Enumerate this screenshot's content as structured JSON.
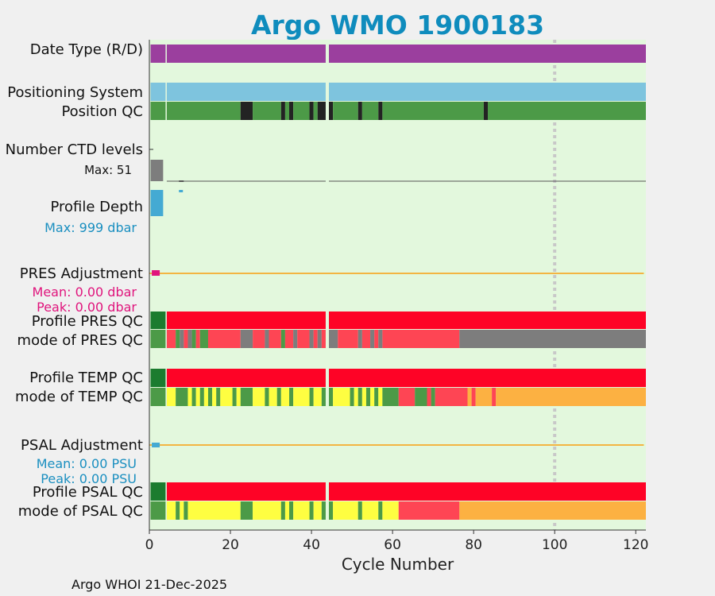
{
  "title": "Argo WMO 1900183",
  "footer": "Argo WHOI 21-Dec-2025",
  "colors": {
    "title": "#0f8cbd",
    "background": "#e3f8dd",
    "purple": "#9b3f9e",
    "light_blue": "#7ec4de",
    "green": "#4c9a47",
    "dark_green": "#1b7c2f",
    "black": "#232323",
    "gray": "#7d7d7d",
    "profile_blue": "#44aad3",
    "magenta": "#e0147c",
    "orange_line": "#f3b542",
    "red": "#fe0326",
    "light_red": "#fe4554",
    "yellow": "#fefe41",
    "orange": "#fcb142",
    "text_cyan": "#1a8fc0"
  },
  "labels": {
    "date_type": "Date Type (R/D)",
    "positioning_system": "Positioning System",
    "position_qc": "Position QC",
    "n_ctd_levels": "Number CTD levels",
    "ctd_max": "Max: 51",
    "profile_depth": "Profile Depth",
    "depth_max": "Max:  999 dbar",
    "pres_adjustment": "PRES Adjustment",
    "pres_mean": "Mean: 0.00 dbar",
    "pres_peak": "Peak: 0.00 dbar",
    "profile_pres_qc": "Profile PRES QC",
    "mode_pres_qc": "mode of PRES QC",
    "profile_temp_qc": "Profile TEMP QC",
    "mode_temp_qc": "mode of TEMP QC",
    "psal_adjustment": "PSAL Adjustment",
    "psal_mean": "Mean: 0.00 PSU",
    "psal_peak": "Peak: 0.00 PSU",
    "profile_psal_qc": "Profile PSAL QC",
    "mode_psal_qc": "mode of PSAL QC"
  },
  "chart_data": {
    "type": "timeline",
    "title": "Argo WMO 1900183",
    "xlabel": "Cycle Number",
    "xlim": [
      0,
      122.5
    ],
    "xticks": [
      0,
      20,
      40,
      60,
      80,
      100,
      120
    ],
    "reference_line_cycle": 100,
    "cycle_gaps": [
      [
        4,
        4.3
      ],
      [
        43.5,
        44.3
      ]
    ],
    "ctd_levels_max": 51,
    "profile_depth_max_dbar": 999,
    "pres_adjustment": {
      "mean": 0.0,
      "peak": 0.0,
      "unit": "dbar"
    },
    "psal_adjustment": {
      "mean": 0.0,
      "peak": 0.0,
      "unit": "PSU"
    },
    "rows": [
      {
        "name": "date-type",
        "segments": [
          [
            0.3,
            4,
            "purple"
          ],
          [
            4.3,
            43.5,
            "purple"
          ],
          [
            44.3,
            122.5,
            "purple"
          ]
        ]
      },
      {
        "name": "positioning-system",
        "segments": [
          [
            0.3,
            4,
            "light_blue"
          ],
          [
            4.3,
            43.5,
            "light_blue"
          ],
          [
            44.3,
            122.5,
            "light_blue"
          ]
        ]
      },
      {
        "name": "position-qc",
        "segments": [
          [
            0.3,
            4,
            "green"
          ],
          [
            4.3,
            22.5,
            "green"
          ],
          [
            22.5,
            25.5,
            "black"
          ],
          [
            25.5,
            32.5,
            "green"
          ],
          [
            32.5,
            33.5,
            "black"
          ],
          [
            33.5,
            34.5,
            "green"
          ],
          [
            34.5,
            35.5,
            "black"
          ],
          [
            35.5,
            39.5,
            "green"
          ],
          [
            39.5,
            40.5,
            "black"
          ],
          [
            40.5,
            41.5,
            "green"
          ],
          [
            41.5,
            43.5,
            "black"
          ],
          [
            44.3,
            45.3,
            "black"
          ],
          [
            45.3,
            51.5,
            "green"
          ],
          [
            51.5,
            52.5,
            "black"
          ],
          [
            52.5,
            56.5,
            "green"
          ],
          [
            56.5,
            57.5,
            "black"
          ],
          [
            57.5,
            82.5,
            "green"
          ],
          [
            82.5,
            83.5,
            "black"
          ],
          [
            83.5,
            122.5,
            "green"
          ]
        ]
      },
      {
        "name": "profile-pres-qc",
        "segments": [
          [
            0.3,
            4,
            "dark_green"
          ],
          [
            4.3,
            43.5,
            "red"
          ],
          [
            44.3,
            122.5,
            "red"
          ]
        ]
      },
      {
        "name": "mode-pres-qc",
        "segments": [
          [
            0.3,
            4,
            "green"
          ],
          [
            4.3,
            6.5,
            "light_red"
          ],
          [
            6.5,
            7.5,
            "green"
          ],
          [
            7.5,
            8.5,
            "gray"
          ],
          [
            8.5,
            9.5,
            "light_red"
          ],
          [
            9.5,
            10.5,
            "gray"
          ],
          [
            10.5,
            11.5,
            "green"
          ],
          [
            11.5,
            12.5,
            "light_red"
          ],
          [
            12.5,
            14.5,
            "green"
          ],
          [
            14.5,
            22.5,
            "light_red"
          ],
          [
            22.5,
            25.5,
            "gray"
          ],
          [
            25.5,
            28.5,
            "light_red"
          ],
          [
            28.5,
            29.5,
            "gray"
          ],
          [
            29.5,
            32.5,
            "light_red"
          ],
          [
            32.5,
            33.5,
            "green"
          ],
          [
            33.5,
            35.5,
            "light_red"
          ],
          [
            35.5,
            36.5,
            "gray"
          ],
          [
            36.5,
            39.5,
            "light_red"
          ],
          [
            39.5,
            40.5,
            "gray"
          ],
          [
            40.5,
            41.5,
            "light_red"
          ],
          [
            41.5,
            42.5,
            "gray"
          ],
          [
            42.5,
            43.5,
            "light_red"
          ],
          [
            44.3,
            46.5,
            "gray"
          ],
          [
            46.5,
            51.5,
            "light_red"
          ],
          [
            51.5,
            52.5,
            "gray"
          ],
          [
            52.5,
            54.5,
            "light_red"
          ],
          [
            54.5,
            55.5,
            "gray"
          ],
          [
            55.5,
            56.5,
            "light_red"
          ],
          [
            56.5,
            57.5,
            "gray"
          ],
          [
            57.5,
            76.5,
            "light_red"
          ],
          [
            76.5,
            122.5,
            "gray"
          ]
        ]
      },
      {
        "name": "profile-temp-qc",
        "segments": [
          [
            0.3,
            4,
            "dark_green"
          ],
          [
            4.3,
            43.5,
            "red"
          ],
          [
            44.3,
            122.5,
            "red"
          ]
        ]
      },
      {
        "name": "mode-temp-qc",
        "segments": [
          [
            0.3,
            4,
            "green"
          ],
          [
            4.3,
            6.5,
            "yellow"
          ],
          [
            6.5,
            9.5,
            "green"
          ],
          [
            9.5,
            10.5,
            "yellow"
          ],
          [
            10.5,
            11.5,
            "green"
          ],
          [
            11.5,
            12.5,
            "yellow"
          ],
          [
            12.5,
            13.5,
            "green"
          ],
          [
            13.5,
            14.5,
            "yellow"
          ],
          [
            14.5,
            15.5,
            "green"
          ],
          [
            15.5,
            16.5,
            "yellow"
          ],
          [
            16.5,
            17.5,
            "green"
          ],
          [
            17.5,
            20.5,
            "yellow"
          ],
          [
            20.5,
            21.5,
            "green"
          ],
          [
            21.5,
            22.5,
            "yellow"
          ],
          [
            22.5,
            25.5,
            "green"
          ],
          [
            25.5,
            28.5,
            "yellow"
          ],
          [
            28.5,
            29.5,
            "green"
          ],
          [
            29.5,
            31.5,
            "yellow"
          ],
          [
            31.5,
            32.5,
            "green"
          ],
          [
            32.5,
            34.5,
            "yellow"
          ],
          [
            34.5,
            35.5,
            "green"
          ],
          [
            35.5,
            39.5,
            "yellow"
          ],
          [
            39.5,
            40.5,
            "green"
          ],
          [
            40.5,
            42.5,
            "yellow"
          ],
          [
            42.5,
            43.5,
            "green"
          ],
          [
            44.3,
            45.3,
            "green"
          ],
          [
            45.3,
            49.5,
            "yellow"
          ],
          [
            49.5,
            50.5,
            "green"
          ],
          [
            50.5,
            51.5,
            "yellow"
          ],
          [
            51.5,
            52.5,
            "green"
          ],
          [
            52.5,
            53.5,
            "yellow"
          ],
          [
            53.5,
            54.5,
            "green"
          ],
          [
            54.5,
            55.5,
            "yellow"
          ],
          [
            55.5,
            56.5,
            "green"
          ],
          [
            56.5,
            57.5,
            "yellow"
          ],
          [
            57.5,
            61.5,
            "green"
          ],
          [
            61.5,
            65.5,
            "light_red"
          ],
          [
            65.5,
            68.5,
            "green"
          ],
          [
            68.5,
            69.5,
            "light_red"
          ],
          [
            69.5,
            70.5,
            "green"
          ],
          [
            70.5,
            78.5,
            "light_red"
          ],
          [
            78.5,
            79.5,
            "orange"
          ],
          [
            79.5,
            80.5,
            "light_red"
          ],
          [
            80.5,
            84.5,
            "orange"
          ],
          [
            84.5,
            85.5,
            "light_red"
          ],
          [
            85.5,
            122.5,
            "orange"
          ]
        ]
      },
      {
        "name": "profile-psal-qc",
        "segments": [
          [
            0.3,
            4,
            "dark_green"
          ],
          [
            4.3,
            43.5,
            "red"
          ],
          [
            44.3,
            122.5,
            "red"
          ]
        ]
      },
      {
        "name": "mode-psal-qc",
        "segments": [
          [
            0.3,
            4,
            "green"
          ],
          [
            4.3,
            6.5,
            "yellow"
          ],
          [
            6.5,
            7.5,
            "green"
          ],
          [
            7.5,
            8.5,
            "yellow"
          ],
          [
            8.5,
            9.5,
            "green"
          ],
          [
            9.5,
            22.5,
            "yellow"
          ],
          [
            22.5,
            25.5,
            "green"
          ],
          [
            25.5,
            32.5,
            "yellow"
          ],
          [
            32.5,
            33.5,
            "green"
          ],
          [
            33.5,
            34.5,
            "yellow"
          ],
          [
            34.5,
            35.5,
            "green"
          ],
          [
            35.5,
            39.5,
            "yellow"
          ],
          [
            39.5,
            40.5,
            "green"
          ],
          [
            40.5,
            42.5,
            "yellow"
          ],
          [
            42.5,
            43.5,
            "green"
          ],
          [
            44.3,
            45.3,
            "green"
          ],
          [
            45.3,
            51.5,
            "yellow"
          ],
          [
            51.5,
            52.5,
            "green"
          ],
          [
            52.5,
            56.5,
            "yellow"
          ],
          [
            56.5,
            57.5,
            "green"
          ],
          [
            57.5,
            61.5,
            "yellow"
          ],
          [
            61.5,
            76.5,
            "light_red"
          ],
          [
            76.5,
            122.5,
            "orange"
          ]
        ]
      }
    ]
  }
}
